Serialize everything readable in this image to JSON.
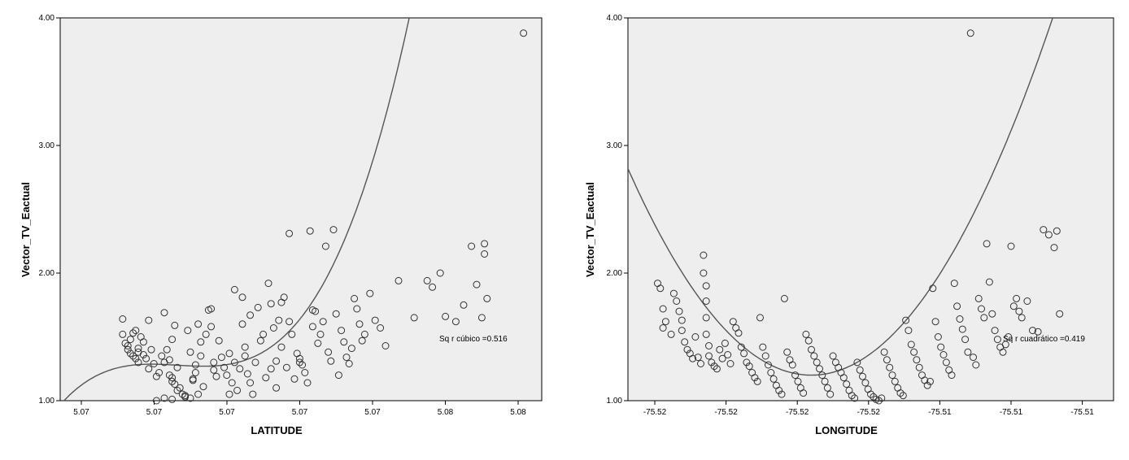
{
  "chart_data": [
    {
      "type": "scatter",
      "title": "",
      "xlabel": "LATITUDE",
      "ylabel": "Vector_TV_Eactual",
      "x_tick_labels": [
        "5.07",
        "5.07",
        "5.07",
        "5.07",
        "5.07",
        "5.08",
        "5.08",
        "5.08"
      ],
      "y_tick_labels": [
        "1.00",
        "2.00",
        "3.00",
        "4.00"
      ],
      "xlim": [
        5.066,
        5.0845
      ],
      "ylim": [
        1.0,
        4.0
      ],
      "fit": {
        "type": "cubic",
        "label": "Sq r cúbico =0.516",
        "coeffs": [
          1.27,
          5.8,
          110.0,
          110000.0
        ],
        "x0": 5.0715
      },
      "points": {
        "x": [
          5.0684,
          5.0684,
          5.0685,
          5.0686,
          5.0687,
          5.0688,
          5.0689,
          5.069,
          5.0687,
          5.0688,
          5.0686,
          5.0689,
          5.0691,
          5.0692,
          5.069,
          5.069,
          5.0692,
          5.0694,
          5.0695,
          5.0693,
          5.0696,
          5.0694,
          5.0698,
          5.0697,
          5.0699,
          5.07,
          5.07,
          5.0702,
          5.0703,
          5.0704,
          5.0705,
          5.0703,
          5.0706,
          5.0707,
          5.0708,
          5.0705,
          5.0702,
          5.0701,
          5.0703,
          5.0704,
          5.0709,
          5.071,
          5.0711,
          5.0712,
          5.0713,
          5.0714,
          5.0712,
          5.0711,
          5.0713,
          5.0715,
          5.0716,
          5.0717,
          5.0714,
          5.0718,
          5.0719,
          5.072,
          5.0719,
          5.0721,
          5.0718,
          5.0722,
          5.0724,
          5.0725,
          5.0723,
          5.0726,
          5.0727,
          5.0725,
          5.0728,
          5.0729,
          5.073,
          5.0727,
          5.073,
          5.0731,
          5.0732,
          5.0733,
          5.0731,
          5.0734,
          5.0735,
          5.0736,
          5.0733,
          5.0737,
          5.0738,
          5.0739,
          5.074,
          5.0741,
          5.0742,
          5.0741,
          5.0743,
          5.0743,
          5.0744,
          5.0745,
          5.0746,
          5.0747,
          5.0745,
          5.0748,
          5.0749,
          5.075,
          5.0748,
          5.0751,
          5.0752,
          5.0752,
          5.0753,
          5.0754,
          5.0755,
          5.0756,
          5.0757,
          5.0757,
          5.0758,
          5.0759,
          5.076,
          5.0761,
          5.0762,
          5.0763,
          5.0764,
          5.0765,
          5.0766,
          5.0767,
          5.0768,
          5.0769,
          5.077,
          5.0771,
          5.0772,
          5.0773,
          5.0774,
          5.0775,
          5.0776,
          5.0777,
          5.0779,
          5.0781,
          5.0783,
          5.0785,
          5.079,
          5.0796,
          5.0801,
          5.0803,
          5.0806,
          5.0808,
          5.0812,
          5.0815,
          5.0818,
          5.082,
          5.0822,
          5.0823,
          5.0823,
          5.0824,
          5.0838,
          5.0697,
          5.07,
          5.0703,
          5.0708,
          5.071
        ],
        "y": [
          1.64,
          1.52,
          1.45,
          1.4,
          1.37,
          1.35,
          1.33,
          1.38,
          1.48,
          1.53,
          1.43,
          1.55,
          1.5,
          1.46,
          1.3,
          1.41,
          1.36,
          1.63,
          1.4,
          1.33,
          1.29,
          1.25,
          1.22,
          1.19,
          1.35,
          1.69,
          1.3,
          1.32,
          1.48,
          1.59,
          1.26,
          1.15,
          1.1,
          1.05,
          1.03,
          1.08,
          1.2,
          1.4,
          1.18,
          1.13,
          1.55,
          1.38,
          1.17,
          1.28,
          1.6,
          1.46,
          1.22,
          1.16,
          1.05,
          1.11,
          1.52,
          1.71,
          1.35,
          1.72,
          1.3,
          1.19,
          1.24,
          1.47,
          1.58,
          1.34,
          1.2,
          1.05,
          1.26,
          1.14,
          1.3,
          1.37,
          1.08,
          1.25,
          1.81,
          1.87,
          1.6,
          1.35,
          1.21,
          1.14,
          1.42,
          1.05,
          1.3,
          1.73,
          1.67,
          1.47,
          1.52,
          1.18,
          1.92,
          1.76,
          1.57,
          1.25,
          1.1,
          1.31,
          1.63,
          1.77,
          1.81,
          1.26,
          1.42,
          2.31,
          1.52,
          1.17,
          1.62,
          1.37,
          1.33,
          1.3,
          1.28,
          1.22,
          1.14,
          2.33,
          1.58,
          1.71,
          1.7,
          1.45,
          1.52,
          1.62,
          2.21,
          1.38,
          1.31,
          2.34,
          1.68,
          1.2,
          1.55,
          1.46,
          1.34,
          1.29,
          1.41,
          1.8,
          1.72,
          1.6,
          1.47,
          1.52,
          1.84,
          1.63,
          1.57,
          1.43,
          1.94,
          1.65,
          1.94,
          1.89,
          2.0,
          1.66,
          1.62,
          1.75,
          2.21,
          1.91,
          1.65,
          2.15,
          2.23,
          1.8,
          3.88,
          1.0,
          1.02,
          1.01,
          1.04,
          1.02
        ]
      }
    },
    {
      "type": "scatter",
      "title": "",
      "xlabel": "LONGITUDE",
      "ylabel": "Vector_TV_Eactual",
      "x_tick_labels": [
        "-75.52",
        "-75.52",
        "-75.52",
        "-75.52",
        "-75.51",
        "-75.51",
        "-75.51"
      ],
      "y_tick_labels": [
        "1.00",
        "2.00",
        "3.00",
        "4.00"
      ],
      "xlim": [
        -75.5242,
        -75.5062
      ],
      "ylim": [
        1.0,
        4.0
      ],
      "fit": {
        "type": "quadratic",
        "label": "Sq r cuadrático =0.419",
        "coeffs": [
          1.2,
          0.0,
          35000.0
        ],
        "x0": -75.5174
      },
      "points": {
        "x": [
          -75.5231,
          -75.523,
          -75.5229,
          -75.5228,
          -75.5229,
          -75.5226,
          -75.5225,
          -75.5224,
          -75.5223,
          -75.5222,
          -75.5222,
          -75.5221,
          -75.522,
          -75.5219,
          -75.5218,
          -75.5217,
          -75.5216,
          -75.5215,
          -75.5214,
          -75.5214,
          -75.5213,
          -75.5213,
          -75.5213,
          -75.5213,
          -75.5212,
          -75.5212,
          -75.5211,
          -75.521,
          -75.5209,
          -75.5208,
          -75.5207,
          -75.5206,
          -75.5205,
          -75.5204,
          -75.5203,
          -75.5202,
          -75.5201,
          -75.52,
          -75.5199,
          -75.5198,
          -75.5197,
          -75.5196,
          -75.5195,
          -75.5194,
          -75.5193,
          -75.5192,
          -75.5191,
          -75.519,
          -75.5189,
          -75.5188,
          -75.5187,
          -75.5186,
          -75.5185,
          -75.5184,
          -75.5183,
          -75.5182,
          -75.5181,
          -75.518,
          -75.5179,
          -75.5178,
          -75.5177,
          -75.5176,
          -75.5175,
          -75.5174,
          -75.5173,
          -75.5172,
          -75.5171,
          -75.517,
          -75.5169,
          -75.5168,
          -75.5167,
          -75.5166,
          -75.5165,
          -75.5164,
          -75.5163,
          -75.5162,
          -75.5161,
          -75.516,
          -75.5159,
          -75.5158,
          -75.5157,
          -75.5156,
          -75.5155,
          -75.5154,
          -75.5153,
          -75.5152,
          -75.5151,
          -75.515,
          -75.5149,
          -75.5148,
          -75.5147,
          -75.5146,
          -75.5145,
          -75.5144,
          -75.5143,
          -75.5142,
          -75.5141,
          -75.514,
          -75.5139,
          -75.5138,
          -75.5137,
          -75.5136,
          -75.5135,
          -75.5134,
          -75.5133,
          -75.5132,
          -75.5131,
          -75.513,
          -75.5129,
          -75.5128,
          -75.5127,
          -75.5126,
          -75.5125,
          -75.5124,
          -75.5123,
          -75.5122,
          -75.5121,
          -75.512,
          -75.5119,
          -75.5118,
          -75.5117,
          -75.5116,
          -75.5115,
          -75.5114,
          -75.5113,
          -75.5112,
          -75.5111,
          -75.511,
          -75.5109,
          -75.5108,
          -75.5107,
          -75.5106,
          -75.5105,
          -75.5104,
          -75.5103,
          -75.5102,
          -75.5101,
          -75.51,
          -75.5099,
          -75.5098,
          -75.5097,
          -75.5096,
          -75.5094,
          -75.5092,
          -75.509,
          -75.5088,
          -75.5086,
          -75.5084,
          -75.5083,
          -75.5082
        ],
        "y": [
          1.92,
          1.88,
          1.72,
          1.62,
          1.57,
          1.52,
          1.84,
          1.78,
          1.7,
          1.63,
          1.55,
          1.46,
          1.4,
          1.37,
          1.33,
          1.5,
          1.34,
          1.29,
          2.14,
          2.0,
          1.9,
          1.78,
          1.65,
          1.52,
          1.43,
          1.35,
          1.3,
          1.27,
          1.25,
          1.4,
          1.33,
          1.45,
          1.36,
          1.29,
          1.62,
          1.57,
          1.53,
          1.42,
          1.37,
          1.3,
          1.27,
          1.22,
          1.18,
          1.15,
          1.65,
          1.42,
          1.35,
          1.28,
          1.22,
          1.17,
          1.12,
          1.08,
          1.05,
          1.8,
          1.38,
          1.32,
          1.28,
          1.2,
          1.15,
          1.1,
          1.06,
          1.52,
          1.47,
          1.4,
          1.35,
          1.3,
          1.25,
          1.2,
          1.15,
          1.1,
          1.05,
          1.35,
          1.3,
          1.26,
          1.22,
          1.18,
          1.13,
          1.08,
          1.04,
          1.02,
          1.3,
          1.24,
          1.19,
          1.14,
          1.09,
          1.05,
          1.03,
          1.01,
          1.0,
          1.02,
          1.38,
          1.32,
          1.26,
          1.2,
          1.15,
          1.1,
          1.06,
          1.04,
          1.63,
          1.55,
          1.44,
          1.38,
          1.32,
          1.26,
          1.2,
          1.16,
          1.12,
          1.15,
          1.88,
          1.62,
          1.5,
          1.42,
          1.36,
          1.3,
          1.24,
          1.2,
          1.92,
          1.74,
          1.64,
          1.56,
          1.48,
          1.38,
          3.88,
          1.34,
          1.28,
          1.8,
          1.72,
          1.65,
          2.23,
          1.93,
          1.68,
          1.55,
          1.48,
          1.42,
          1.38,
          1.44,
          1.5,
          2.21,
          1.74,
          1.8,
          1.7,
          1.65,
          1.78,
          1.55,
          1.54,
          2.34,
          2.3,
          2.2,
          2.33,
          1.68
        ]
      }
    }
  ]
}
